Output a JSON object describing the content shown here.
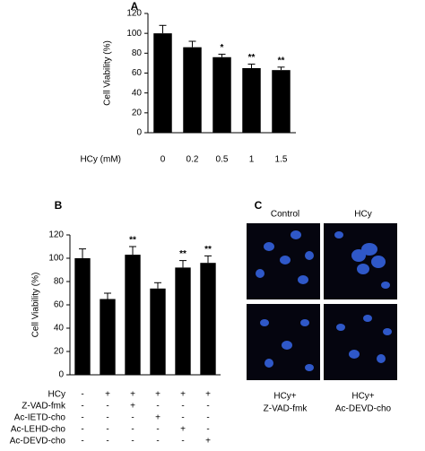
{
  "chart_data": [
    {
      "type": "bar",
      "title": "A",
      "ylabel": "Cell Viability (%)",
      "xlabel": "HCy (mM)",
      "categories": [
        "0",
        "0.2",
        "0.5",
        "1",
        "1.5"
      ],
      "values": [
        100,
        86,
        76,
        65,
        63
      ],
      "errors": [
        8,
        6,
        3,
        4,
        3
      ],
      "annotations": [
        null,
        null,
        "*",
        "**",
        "**"
      ],
      "color": "#000000",
      "ylim": [
        0,
        120
      ],
      "yticks": [
        0,
        20,
        40,
        60,
        80,
        100,
        120
      ]
    },
    {
      "type": "bar",
      "title": "B",
      "ylabel": "Cell Viability (%)",
      "categories": [
        null,
        null,
        null,
        null,
        null,
        null
      ],
      "values": [
        100,
        65,
        103,
        74,
        92,
        96
      ],
      "errors": [
        8,
        5,
        7,
        5,
        6,
        6
      ],
      "annotations": [
        null,
        null,
        "**",
        null,
        "**",
        "**"
      ],
      "color": "#000000",
      "ylim": [
        0,
        120
      ],
      "yticks": [
        0,
        20,
        40,
        60,
        80,
        100,
        120
      ],
      "treatments": [
        {
          "name": "HCy",
          "values": [
            "-",
            "+",
            "+",
            "+",
            "+",
            "+"
          ]
        },
        {
          "name": "Z-VAD-fmk",
          "values": [
            "-",
            "-",
            "+",
            "-",
            "-",
            "-"
          ]
        },
        {
          "name": "Ac-IETD-cho",
          "values": [
            "-",
            "-",
            "-",
            "+",
            "-",
            "-"
          ]
        },
        {
          "name": "Ac-LEHD-cho",
          "values": [
            "-",
            "-",
            "-",
            "-",
            "+",
            "-"
          ]
        },
        {
          "name": "Ac-DEVD-cho",
          "values": [
            "-",
            "-",
            "-",
            "-",
            "-",
            "+"
          ]
        }
      ]
    }
  ],
  "panel_c": {
    "title": "C",
    "top_labels": [
      "Control",
      "HCy"
    ],
    "bottom_labels": [
      [
        "HCy+",
        "Z-VAD-fmk"
      ],
      [
        "HCy+",
        "Ac-DEVD-cho"
      ]
    ]
  }
}
